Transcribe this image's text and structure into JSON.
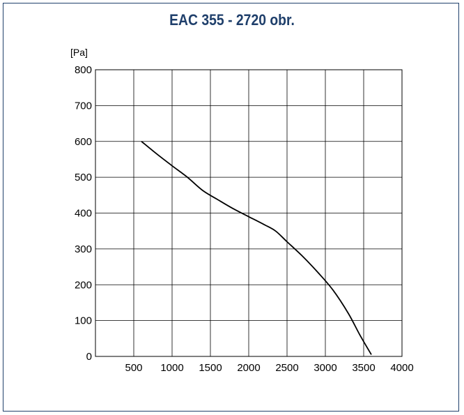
{
  "chart_data": {
    "type": "line",
    "title": "EAC 355 - 2720 obr.",
    "ylabel": "[Pa]",
    "xlabel": "",
    "xlim": [
      0,
      4000
    ],
    "ylim": [
      0,
      800
    ],
    "x_ticks": [
      500,
      1000,
      1500,
      2000,
      2500,
      3000,
      3500,
      4000
    ],
    "y_ticks": [
      0,
      100,
      200,
      300,
      400,
      500,
      600,
      700,
      800
    ],
    "grid": true,
    "series": [
      {
        "x": [
          600,
          800,
          1000,
          1200,
          1400,
          1600,
          1800,
          2000,
          2200,
          2350,
          2500,
          2700,
          2900,
          3100,
          3300,
          3450,
          3600
        ],
        "values": [
          600,
          565,
          532,
          500,
          463,
          437,
          412,
          390,
          368,
          350,
          320,
          280,
          235,
          185,
          120,
          60,
          5
        ]
      }
    ]
  },
  "colors": {
    "title": "#1f3f6b",
    "frame": "#1f3f6b",
    "grid": "#000000",
    "line": "#000000"
  }
}
